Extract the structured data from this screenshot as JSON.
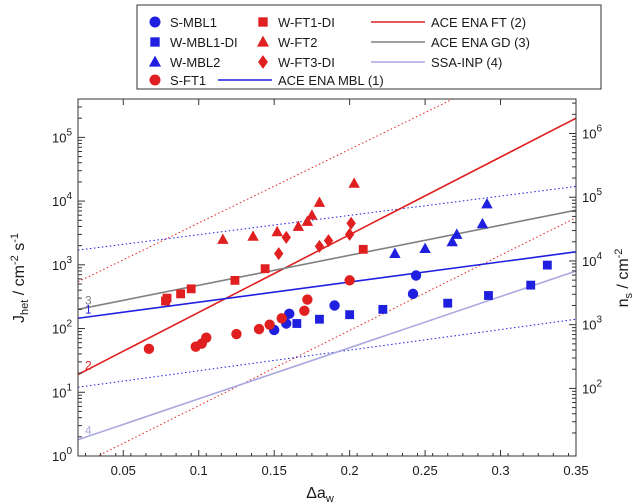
{
  "chart_data": {
    "type": "scatter",
    "xlabel_main": "Δa",
    "xlabel_sub": "w",
    "xlim": [
      0.02,
      0.35
    ],
    "ylim": [
      1,
      400000
    ],
    "x_ticks": [
      "0.05",
      "0.1",
      "0.15",
      "0.2",
      "0.25",
      "0.3",
      "0.35"
    ],
    "y_left_label": {
      "J": "J",
      "het": "het",
      "unit1": " / cm",
      "exp1": "-2",
      "unit2": " s",
      "exp2": "-1"
    },
    "y_left_scale": "log",
    "y_left_ticks": [
      {
        "base": "10",
        "exp": "0"
      },
      {
        "base": "10",
        "exp": "1"
      },
      {
        "base": "10",
        "exp": "2"
      },
      {
        "base": "10",
        "exp": "3"
      },
      {
        "base": "10",
        "exp": "4"
      },
      {
        "base": "10",
        "exp": "5"
      }
    ],
    "y_right_label": {
      "n": "n",
      "s": "s",
      "unit": " / cm",
      "exp": "-2"
    },
    "y_right_scale": "log",
    "y_right_ticks": [
      {
        "base": "10",
        "exp": "2"
      },
      {
        "base": "10",
        "exp": "3"
      },
      {
        "base": "10",
        "exp": "4"
      },
      {
        "base": "10",
        "exp": "5"
      },
      {
        "base": "10",
        "exp": "6"
      }
    ],
    "grid": false,
    "legend_position": "top",
    "colors": {
      "blue": "#1f1fe0",
      "red": "#e02020",
      "gray": "#808080",
      "lavender": "#aaa8e0"
    },
    "series": [
      {
        "name": "S-MBL1",
        "marker": "circle",
        "color": "#1f1fe0",
        "points": [
          [
            0.15,
            95
          ],
          [
            0.158,
            120
          ],
          [
            0.16,
            170
          ],
          [
            0.19,
            230
          ],
          [
            0.242,
            350
          ],
          [
            0.244,
            680
          ]
        ]
      },
      {
        "name": "W-MBL1-DI",
        "marker": "square",
        "color": "#1f1fe0",
        "points": [
          [
            0.165,
            120
          ],
          [
            0.18,
            140
          ],
          [
            0.2,
            165
          ],
          [
            0.222,
            200
          ],
          [
            0.265,
            250
          ],
          [
            0.292,
            330
          ],
          [
            0.32,
            480
          ],
          [
            0.331,
            990
          ]
        ]
      },
      {
        "name": "W-MBL2",
        "marker": "triangle",
        "color": "#1f1fe0",
        "points": [
          [
            0.23,
            1500
          ],
          [
            0.25,
            1800
          ],
          [
            0.268,
            2300
          ],
          [
            0.271,
            3000
          ],
          [
            0.288,
            4400
          ],
          [
            0.291,
            9000
          ]
        ]
      },
      {
        "name": "S-FT1",
        "marker": "circle",
        "color": "#e02020",
        "points": [
          [
            0.067,
            48
          ],
          [
            0.098,
            52
          ],
          [
            0.102,
            58
          ],
          [
            0.105,
            72
          ],
          [
            0.125,
            82
          ],
          [
            0.14,
            98
          ],
          [
            0.147,
            115
          ],
          [
            0.155,
            145
          ],
          [
            0.17,
            190
          ],
          [
            0.172,
            285
          ],
          [
            0.2,
            570
          ]
        ]
      },
      {
        "name": "W-FT1-DI",
        "marker": "square",
        "color": "#e02020",
        "points": [
          [
            0.078,
            270
          ],
          [
            0.079,
            300
          ],
          [
            0.088,
            350
          ],
          [
            0.095,
            420
          ],
          [
            0.124,
            570
          ],
          [
            0.144,
            870
          ],
          [
            0.209,
            1750
          ]
        ]
      },
      {
        "name": "W-FT2",
        "marker": "triangle",
        "color": "#e02020",
        "points": [
          [
            0.116,
            2500
          ],
          [
            0.136,
            2800
          ],
          [
            0.152,
            3300
          ],
          [
            0.166,
            4000
          ],
          [
            0.172,
            4800
          ],
          [
            0.175,
            6000
          ],
          [
            0.18,
            9500
          ],
          [
            0.203,
            19000
          ]
        ]
      },
      {
        "name": "W-FT3-DI",
        "marker": "diamond",
        "color": "#e02020",
        "points": [
          [
            0.153,
            1500
          ],
          [
            0.158,
            2700
          ],
          [
            0.18,
            1950
          ],
          [
            0.186,
            2400
          ],
          [
            0.2,
            3000
          ],
          [
            0.201,
            4500
          ]
        ]
      }
    ],
    "lines": [
      {
        "name": "ACE ENA FT (2)",
        "color": "#e02020",
        "label": "2",
        "x": [
          0.02,
          0.35
        ],
        "y": [
          19,
          200000
        ],
        "band": [
          [
            0.02,
            0.35
          ],
          [
            540,
            3500000
          ],
          [
            0.7,
            5500
          ]
        ]
      },
      {
        "name": "ACE ENA GD (3)",
        "color": "#808080",
        "label": "3",
        "x": [
          0.02,
          0.35
        ],
        "y": [
          200,
          7200
        ]
      },
      {
        "name": "SSA-INP (4)",
        "color": "#aaa8e0",
        "label": "4",
        "x": [
          0.02,
          0.35
        ],
        "y": [
          1.8,
          800
        ]
      },
      {
        "name": "ACE ENA MBL (1)",
        "color": "#1f1fe0",
        "label": "1",
        "x": [
          0.02,
          0.35
        ],
        "y": [
          145,
          1600
        ],
        "band": [
          [
            0.02,
            0.35
          ],
          [
            1700,
            17000
          ],
          [
            12,
            140
          ]
        ]
      }
    ],
    "legend_order": [
      [
        "S-MBL1",
        "W-FT1-DI",
        "ACE ENA FT (2)"
      ],
      [
        "W-MBL1-DI",
        "W-FT2",
        "ACE ENA GD (3)"
      ],
      [
        "W-MBL2",
        "W-FT3-DI",
        "SSA-INP (4)"
      ],
      [
        "S-FT1",
        "ACE ENA MBL (1)"
      ]
    ]
  }
}
